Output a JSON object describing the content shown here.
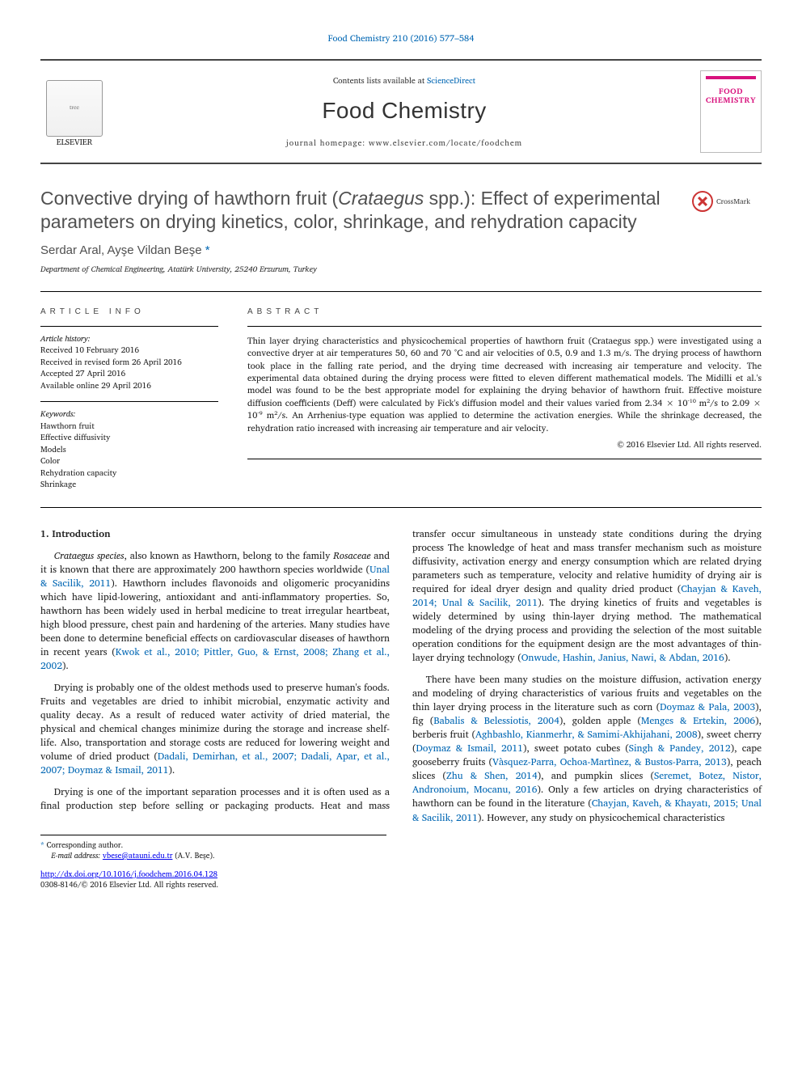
{
  "citation": "Food Chemistry 210 (2016) 577–584",
  "header": {
    "contents_prefix": "Contents lists available at ",
    "contents_link": "ScienceDirect",
    "journal_name": "Food Chemistry",
    "homepage_label": "journal homepage: www.elsevier.com/locate/foodchem",
    "elsevier_label": "ELSEVIER",
    "cover_fc1": "FOOD",
    "cover_fc2": "CHEMISTRY"
  },
  "crossmark_label": "CrossMark",
  "title_html": "Convective drying of hawthorn fruit (<em>Crataegus</em> spp.): Effect of experimental parameters on drying kinetics, color, shrinkage, and rehydration capacity",
  "authors_html": "Serdar Aral, Ayşe Vildan Beşe <span class=\"star\">*</span>",
  "affiliation": "Department of Chemical Engineering, Atatürk University, 25240 Erzurum, Turkey",
  "article_info": {
    "heading": "ARTICLE INFO",
    "history_label": "Article history:",
    "history": [
      "Received 10 February 2016",
      "Received in revised form 26 April 2016",
      "Accepted 27 April 2016",
      "Available online 29 April 2016"
    ],
    "keywords_label": "Keywords:",
    "keywords": [
      "Hawthorn fruit",
      "Effective diffusivity",
      "Models",
      "Color",
      "Rehydration capacity",
      "Shrinkage"
    ]
  },
  "abstract": {
    "heading": "ABSTRACT",
    "text": "Thin layer drying characteristics and physicochemical properties of hawthorn fruit (Crataegus spp.) were investigated using a convective dryer at air temperatures 50, 60 and 70 °C and air velocities of 0.5, 0.9 and 1.3 m/s. The drying process of hawthorn took place in the falling rate period, and the drying time decreased with increasing air temperature and velocity. The experimental data obtained during the drying process were fitted to eleven different mathematical models. The Midilli et al.'s model was found to be the best appropriate model for explaining the drying behavior of hawthorn fruit. Effective moisture diffusion coefficients (Deff) were calculated by Fick's diffusion model and their values varied from 2.34 × 10⁻¹⁰ m²/s to 2.09 × 10⁻⁹ m²/s. An Arrhenius-type equation was applied to determine the activation energies. While the shrinkage decreased, the rehydration ratio increased with increasing air temperature and air velocity.",
    "copyright": "© 2016 Elsevier Ltd. All rights reserved."
  },
  "section1": {
    "heading": "1. Introduction",
    "para1_html": "<em>Crataegus species</em>, also known as Hawthorn, belong to the family <em>Rosaceae</em> and it is known that there are approximately 200 hawthorn species worldwide (<span class=\"ref\">Unal &amp; Sacilik, 2011</span>). Hawthorn includes flavonoids and oligomeric procyanidins which have lipid-lowering, antioxidant and anti-inflammatory properties. So, hawthorn has been widely used in herbal medicine to treat irregular heartbeat, high blood pressure, chest pain and hardening of the arteries. Many studies have been done to determine beneficial effects on cardiovascular diseases of hawthorn in recent years (<span class=\"ref\">Kwok et al., 2010; Pittler, Guo, &amp; Ernst, 2008; Zhang et al., 2002</span>).",
    "para2_html": "Drying is probably one of the oldest methods used to preserve human's foods. Fruits and vegetables are dried to inhibit microbial, enzymatic activity and quality decay. As a result of reduced water activity of dried material, the physical and chemical changes minimize during the storage and increase shelf-life. Also, transportation and storage costs are reduced for lowering weight and volume of dried product (<span class=\"ref\">Dadali, Demirhan, et al., 2007; Dadali, Apar, et al., 2007; Doymaz &amp; Ismail, 2011</span>).",
    "para3_html": "Drying is one of the important separation processes and it is often used as a final production step before selling or packaging products. Heat and mass transfer occur simultaneous in unsteady state conditions during the drying process The knowledge of heat and mass transfer mechanism such as moisture diffusivity, activation energy and energy consumption which are related drying parameters such as temperature, velocity and relative humidity of drying air is required for ideal dryer design and quality dried product (<span class=\"ref\">Chayjan &amp; Kaveh, 2014; Unal &amp; Sacilik, 2011</span>). The drying kinetics of fruits and vegetables is widely determined by using thin-layer drying method. The mathematical modeling of the drying process and providing the selection of the most suitable operation conditions for the equipment design are the most advantages of thin-layer drying technology (<span class=\"ref\">Onwude, Hashin, Janius, Nawi, &amp; Abdan, 2016</span>).",
    "para4_html": "There have been many studies on the moisture diffusion, activation energy and modeling of drying characteristics of various fruits and vegetables on the thin layer drying process in the literature such as corn (<span class=\"ref\">Doymaz &amp; Pala, 2003</span>), fig (<span class=\"ref\">Babalis &amp; Belessiotis, 2004</span>), golden apple (<span class=\"ref\">Menges &amp; Ertekin, 2006</span>), berberis fruit (<span class=\"ref\">Aghbashlo, Kianmerhr, &amp; Samimi-Akhijahani, 2008</span>), sweet cherry (<span class=\"ref\">Doymaz &amp; Ismail, 2011</span>), sweet potato cubes (<span class=\"ref\">Singh &amp; Pandey, 2012</span>), cape gooseberry fruits (<span class=\"ref\">Vàsquez-Parra, Ochoa-Martìnez, &amp; Bustos-Parra, 2013</span>), peach slices (<span class=\"ref\">Zhu &amp; Shen, 2014</span>), and pumpkin slices (<span class=\"ref\">Seremet, Botez, Nistor, Andronoium, Mocanu, 2016</span>). Only a few articles on drying characteristics of hawthorn can be found in the literature (<span class=\"ref\">Chayjan, Kaveh, &amp; Khayatı, 2015; Unal &amp; Sacilik, 2011</span>). However, any study on physicochemical characteristics"
  },
  "footnote": {
    "corr": "Corresponding author.",
    "email_label": "E-mail address:",
    "email": "vbese@atauni.edu.tr",
    "email_tail": "(A.V. Beşe)."
  },
  "doi": {
    "url": "http://dx.doi.org/10.1016/j.foodchem.2016.04.128",
    "issn": "0308-8146/© 2016 Elsevier Ltd. All rights reserved."
  },
  "colors": {
    "link": "#0066b3",
    "magenta": "#d8127d",
    "red": "#c33"
  },
  "fonts": {
    "body": "Charis SIL / Times",
    "sans": "Gill Sans",
    "body_size_pt": 9,
    "title_size_pt": 17,
    "journal_size_pt": 21
  }
}
